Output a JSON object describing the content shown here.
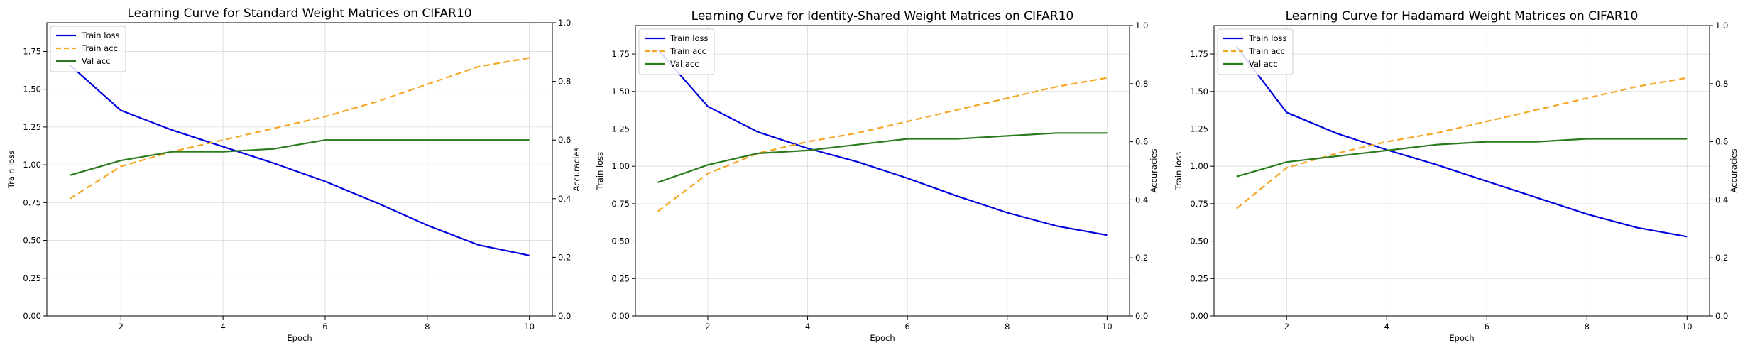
{
  "chart_data": [
    {
      "type": "line",
      "title": "Learning Curve for Standard Weight Matrices on CIFAR10",
      "xlabel": "Epoch",
      "ylabel": "Train loss",
      "y2label": "Accuracies",
      "x": [
        1,
        2,
        3,
        4,
        5,
        6,
        7,
        8,
        9,
        10
      ],
      "xticks": [
        "2",
        "4",
        "6",
        "8",
        "10"
      ],
      "yticks_left": [
        "0.00",
        "0.25",
        "0.50",
        "0.75",
        "1.00",
        "1.25",
        "1.50",
        "1.75"
      ],
      "yticks_right": [
        "0.0",
        "0.2",
        "0.4",
        "0.6",
        "0.8",
        "1.0"
      ],
      "xlim": [
        0.55,
        10.45
      ],
      "ylim_left": [
        0,
        1.94
      ],
      "ylim_right": [
        0,
        1.0
      ],
      "grid": true,
      "legend": "top-left",
      "series": [
        {
          "name": "Train loss",
          "axis": "left",
          "color": "#0000dd",
          "style": "solid",
          "values": [
            1.66,
            1.36,
            1.23,
            1.12,
            1.01,
            0.89,
            0.75,
            0.6,
            0.47,
            0.4
          ]
        },
        {
          "name": "Train acc",
          "axis": "right",
          "color": "#f5a623",
          "style": "dashed",
          "values": [
            0.4,
            0.51,
            0.56,
            0.6,
            0.64,
            0.68,
            0.73,
            0.79,
            0.85,
            0.88
          ]
        },
        {
          "name": "Val acc",
          "axis": "right",
          "color": "#2a7a1e",
          "style": "solid",
          "values": [
            0.48,
            0.53,
            0.56,
            0.56,
            0.57,
            0.6,
            0.6,
            0.6,
            0.6,
            0.6
          ]
        }
      ]
    },
    {
      "type": "line",
      "title": "Learning Curve for Identity-Shared Weight Matrices on CIFAR10",
      "xlabel": "Epoch",
      "ylabel": "Train loss",
      "y2label": "Accuracies",
      "x": [
        1,
        2,
        3,
        4,
        5,
        6,
        7,
        8,
        9,
        10
      ],
      "xticks": [
        "2",
        "4",
        "6",
        "8",
        "10"
      ],
      "yticks_left": [
        "0.00",
        "0.25",
        "0.50",
        "0.75",
        "1.00",
        "1.25",
        "1.50",
        "1.75"
      ],
      "yticks_right": [
        "0.0",
        "0.2",
        "0.4",
        "0.6",
        "0.8",
        "1.0"
      ],
      "xlim": [
        0.55,
        10.45
      ],
      "ylim_left": [
        0,
        1.94
      ],
      "ylim_right": [
        0,
        1.0
      ],
      "grid": true,
      "legend": "top-left",
      "series": [
        {
          "name": "Train loss",
          "axis": "left",
          "color": "#0000dd",
          "style": "solid",
          "values": [
            1.78,
            1.4,
            1.23,
            1.12,
            1.03,
            0.92,
            0.8,
            0.69,
            0.6,
            0.54
          ]
        },
        {
          "name": "Train acc",
          "axis": "right",
          "color": "#f5a623",
          "style": "dashed",
          "values": [
            0.36,
            0.49,
            0.56,
            0.6,
            0.63,
            0.67,
            0.71,
            0.75,
            0.79,
            0.82
          ]
        },
        {
          "name": "Val acc",
          "axis": "right",
          "color": "#2a7a1e",
          "style": "solid",
          "values": [
            0.46,
            0.52,
            0.56,
            0.57,
            0.59,
            0.61,
            0.61,
            0.62,
            0.63,
            0.63
          ]
        }
      ]
    },
    {
      "type": "line",
      "title": "Learning Curve for Hadamard Weight Matrices on CIFAR10",
      "xlabel": "Epoch",
      "ylabel": "Train loss",
      "y2label": "Accuracies",
      "x": [
        1,
        2,
        3,
        4,
        5,
        6,
        7,
        8,
        9,
        10
      ],
      "xticks": [
        "2",
        "4",
        "6",
        "8",
        "10"
      ],
      "yticks_left": [
        "0.00",
        "0.25",
        "0.50",
        "0.75",
        "1.00",
        "1.25",
        "1.50",
        "1.75"
      ],
      "yticks_right": [
        "0.0",
        "0.2",
        "0.4",
        "0.6",
        "0.8",
        "1.0"
      ],
      "xlim": [
        0.55,
        10.45
      ],
      "ylim_left": [
        0,
        1.94
      ],
      "ylim_right": [
        0,
        1.0
      ],
      "grid": true,
      "legend": "top-left",
      "series": [
        {
          "name": "Train loss",
          "axis": "left",
          "color": "#0000dd",
          "style": "solid",
          "values": [
            1.8,
            1.36,
            1.22,
            1.11,
            1.01,
            0.9,
            0.79,
            0.68,
            0.59,
            0.53
          ]
        },
        {
          "name": "Train acc",
          "axis": "right",
          "color": "#f5a623",
          "style": "dashed",
          "values": [
            0.37,
            0.51,
            0.56,
            0.6,
            0.63,
            0.67,
            0.71,
            0.75,
            0.79,
            0.82
          ]
        },
        {
          "name": "Val acc",
          "axis": "right",
          "color": "#2a7a1e",
          "style": "solid",
          "values": [
            0.48,
            0.53,
            0.55,
            0.57,
            0.59,
            0.6,
            0.6,
            0.61,
            0.61,
            0.61
          ]
        }
      ]
    }
  ]
}
